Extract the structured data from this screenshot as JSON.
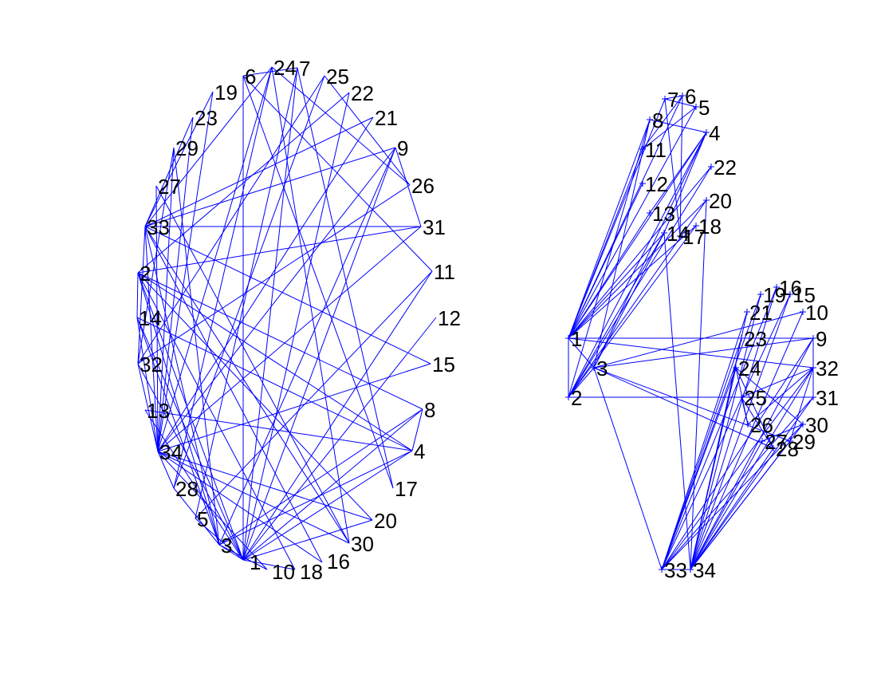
{
  "colors": {
    "edge": "#0000ff",
    "label": "#000000",
    "background": "#ffffff"
  },
  "graph": {
    "description_of_panels": [
      "circular-layout",
      "layered-layout"
    ],
    "nodes": [
      "1",
      "2",
      "3",
      "4",
      "5",
      "6",
      "7",
      "8",
      "9",
      "10",
      "11",
      "12",
      "13",
      "14",
      "15",
      "16",
      "17",
      "18",
      "19",
      "20",
      "21",
      "22",
      "23",
      "24",
      "25",
      "26",
      "27",
      "28",
      "29",
      "30",
      "31",
      "32",
      "33",
      "34"
    ],
    "edges": [
      [
        1,
        2
      ],
      [
        1,
        3
      ],
      [
        1,
        4
      ],
      [
        1,
        5
      ],
      [
        1,
        6
      ],
      [
        1,
        7
      ],
      [
        1,
        8
      ],
      [
        1,
        9
      ],
      [
        1,
        11
      ],
      [
        1,
        12
      ],
      [
        1,
        13
      ],
      [
        1,
        14
      ],
      [
        1,
        18
      ],
      [
        1,
        20
      ],
      [
        1,
        22
      ],
      [
        1,
        32
      ],
      [
        2,
        3
      ],
      [
        2,
        4
      ],
      [
        2,
        8
      ],
      [
        2,
        14
      ],
      [
        2,
        18
      ],
      [
        2,
        20
      ],
      [
        2,
        22
      ],
      [
        2,
        31
      ],
      [
        3,
        4
      ],
      [
        3,
        8
      ],
      [
        3,
        9
      ],
      [
        3,
        10
      ],
      [
        3,
        14
      ],
      [
        3,
        28
      ],
      [
        3,
        29
      ],
      [
        3,
        33
      ],
      [
        4,
        8
      ],
      [
        4,
        13
      ],
      [
        4,
        14
      ],
      [
        5,
        7
      ],
      [
        5,
        11
      ],
      [
        6,
        7
      ],
      [
        6,
        11
      ],
      [
        6,
        17
      ],
      [
        7,
        17
      ],
      [
        9,
        31
      ],
      [
        9,
        33
      ],
      [
        9,
        34
      ],
      [
        10,
        34
      ],
      [
        14,
        34
      ],
      [
        15,
        33
      ],
      [
        15,
        34
      ],
      [
        16,
        33
      ],
      [
        16,
        34
      ],
      [
        19,
        33
      ],
      [
        19,
        34
      ],
      [
        20,
        34
      ],
      [
        21,
        33
      ],
      [
        21,
        34
      ],
      [
        23,
        33
      ],
      [
        23,
        34
      ],
      [
        24,
        26
      ],
      [
        24,
        28
      ],
      [
        24,
        30
      ],
      [
        24,
        33
      ],
      [
        24,
        34
      ],
      [
        25,
        26
      ],
      [
        25,
        28
      ],
      [
        25,
        32
      ],
      [
        26,
        32
      ],
      [
        27,
        30
      ],
      [
        27,
        34
      ],
      [
        28,
        34
      ],
      [
        29,
        32
      ],
      [
        29,
        34
      ],
      [
        30,
        33
      ],
      [
        30,
        34
      ],
      [
        31,
        33
      ],
      [
        31,
        34
      ],
      [
        32,
        33
      ],
      [
        32,
        34
      ],
      [
        33,
        34
      ]
    ]
  }
}
